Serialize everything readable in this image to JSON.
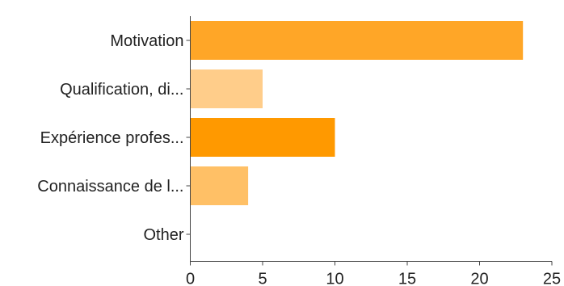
{
  "chart_data": {
    "type": "bar",
    "orientation": "horizontal",
    "title": "",
    "xlabel": "",
    "ylabel": "",
    "categories": [
      "Motivation",
      "Qualification, di...",
      "Expérience profes...",
      "Connaissance de l...",
      "Other"
    ],
    "values": [
      23,
      5,
      10,
      4,
      0
    ],
    "bar_colors": [
      "#FFA627",
      "#FFCD8A",
      "#FF9900",
      "#FFC066",
      "#FFB347"
    ],
    "xlim": [
      0,
      25
    ],
    "xticks": [
      "0",
      "5",
      "10",
      "15",
      "20",
      "25"
    ],
    "grid": false,
    "legend": "none"
  }
}
